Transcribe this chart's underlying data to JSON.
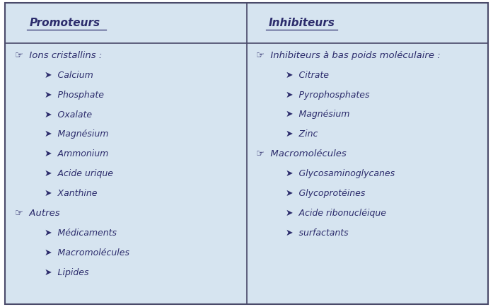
{
  "bg_color": "#d6e4f0",
  "border_color": "#4a4a6a",
  "text_color": "#2c2c6c",
  "header_left": "Promoteurs",
  "header_right": "Inhibiteurs",
  "left_items": [
    {
      "level": 1,
      "text": "☞  Ions cristallins :"
    },
    {
      "level": 2,
      "text": "➤  Calcium"
    },
    {
      "level": 2,
      "text": "➤  Phosphate"
    },
    {
      "level": 2,
      "text": "➤  Oxalate"
    },
    {
      "level": 2,
      "text": "➤  Magnésium"
    },
    {
      "level": 2,
      "text": "➤  Ammonium"
    },
    {
      "level": 2,
      "text": "➤  Acide urique"
    },
    {
      "level": 2,
      "text": "➤  Xanthine"
    },
    {
      "level": 1,
      "text": "☞  Autres"
    },
    {
      "level": 2,
      "text": "➤  Médicaments"
    },
    {
      "level": 2,
      "text": "➤  Macromolécules"
    },
    {
      "level": 2,
      "text": "➤  Lipides"
    }
  ],
  "right_items": [
    {
      "level": 1,
      "text": "☞  Inhibiteurs à bas poids moléculaire :"
    },
    {
      "level": 2,
      "text": "➤  Citrate"
    },
    {
      "level": 2,
      "text": "➤  Pyrophosphates"
    },
    {
      "level": 2,
      "text": "➤  Magnésium"
    },
    {
      "level": 2,
      "text": "➤  Zinc"
    },
    {
      "level": 1,
      "text": "☞  Macromolécules"
    },
    {
      "level": 2,
      "text": "➤  Glycosaminoglycanes"
    },
    {
      "level": 2,
      "text": "➤  Glycoprotéines"
    },
    {
      "level": 2,
      "text": "➤  Acide ribonucléique"
    },
    {
      "level": 2,
      "text": "➤  surfactants"
    }
  ],
  "font_size_header": 11,
  "font_size_level1": 9.5,
  "font_size_level2": 9,
  "figsize": [
    6.97,
    4.34
  ],
  "dpi": 100
}
